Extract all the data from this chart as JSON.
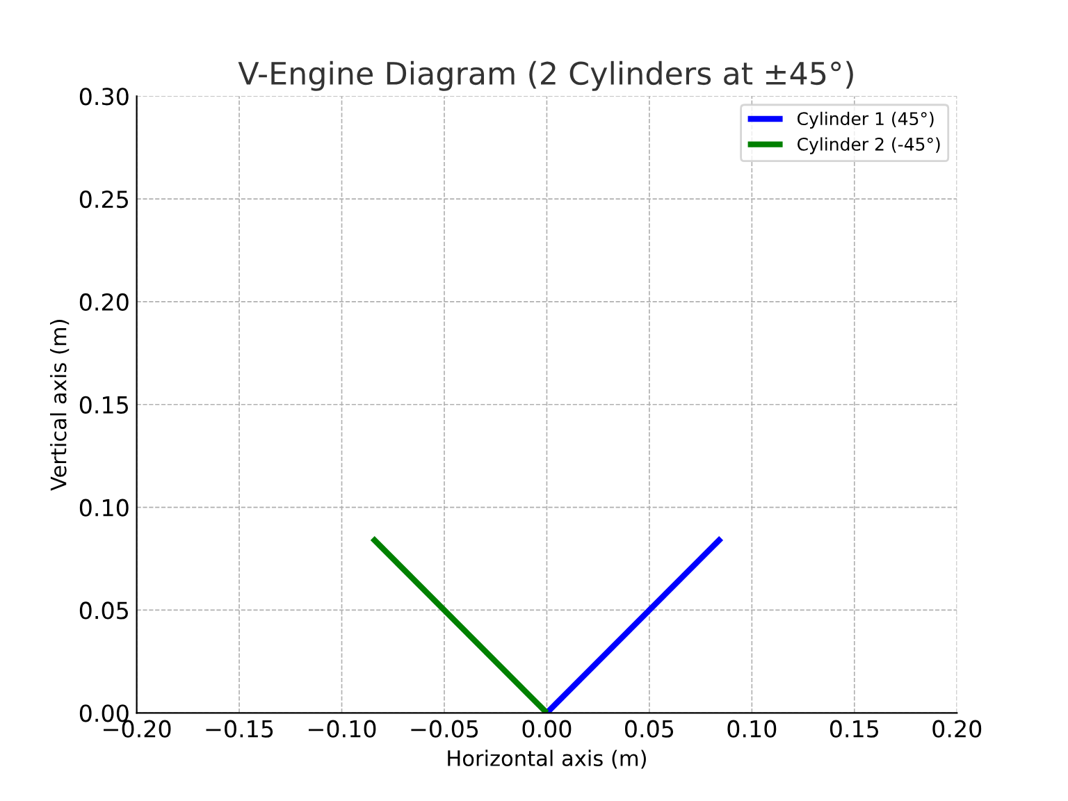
{
  "chart_data": {
    "type": "line",
    "title": "V-Engine Diagram (2 Cylinders at ±45°)",
    "xlabel": "Horizontal axis (m)",
    "ylabel": "Vertical axis (m)",
    "series": [
      {
        "name": "Cylinder 1 (45°)",
        "color": "#0000ff",
        "x": [
          0,
          0.085
        ],
        "values": [
          0,
          0.085
        ]
      },
      {
        "name": "Cylinder 2 (-45°)",
        "color": "#008000",
        "x": [
          0,
          -0.085
        ],
        "values": [
          0,
          0.085
        ]
      }
    ],
    "xlim": [
      -0.2,
      0.2
    ],
    "ylim": [
      0,
      0.3
    ],
    "xticks": [
      {
        "value": -0.2,
        "label": "−0.20"
      },
      {
        "value": -0.15,
        "label": "−0.15"
      },
      {
        "value": -0.1,
        "label": "−0.10"
      },
      {
        "value": -0.05,
        "label": "−0.05"
      },
      {
        "value": 0,
        "label": "0.00"
      },
      {
        "value": 0.05,
        "label": "0.05"
      },
      {
        "value": 0.1,
        "label": "0.10"
      },
      {
        "value": 0.15,
        "label": "0.15"
      },
      {
        "value": 0.2,
        "label": "0.20"
      }
    ],
    "yticks": [
      {
        "value": 0,
        "label": "0.00"
      },
      {
        "value": 0.05,
        "label": "0.05"
      },
      {
        "value": 0.1,
        "label": "0.10"
      },
      {
        "value": 0.15,
        "label": "0.15"
      },
      {
        "value": 0.2,
        "label": "0.20"
      },
      {
        "value": 0.25,
        "label": "0.25"
      },
      {
        "value": 0.3,
        "label": "0.30"
      }
    ],
    "grid": true,
    "legend": "top right",
    "line_style": "solid",
    "marker": "none"
  }
}
